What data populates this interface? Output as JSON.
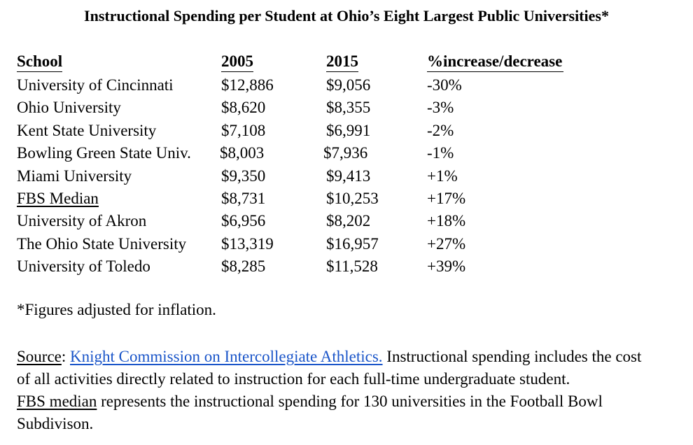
{
  "title": "Instructional Spending per Student at Ohio’s Eight Largest Public Universities*",
  "table": {
    "headers": {
      "school": "School",
      "y2005": "2005",
      "y2015": "2015",
      "change": "%increase/decrease"
    },
    "rows": [
      {
        "school": "University of Cincinnati",
        "y2005": "$12,886",
        "y2015": "$9,056",
        "change": "-30%"
      },
      {
        "school": "Ohio University",
        "y2005": "$8,620",
        "y2015": "$8,355",
        "change": "-3%"
      },
      {
        "school": "Kent State University",
        "y2005": "$7,108",
        "y2015": "$6,991",
        "change": "-2%"
      },
      {
        "school": "Bowling Green State Univ.",
        "y2005": "$8,003",
        "y2015": "$7,936",
        "change": "-1%"
      },
      {
        "school": "Miami University",
        "y2005": "$9,350",
        "y2015": "$9,413",
        "change": "+1%"
      },
      {
        "school": "FBS Median",
        "y2005": "$8,731",
        "y2015": "$10,253",
        "change": "+17%"
      },
      {
        "school": "University of Akron",
        "y2005": "$6,956",
        "y2015": "$8,202",
        "change": "+18%"
      },
      {
        "school": "The Ohio State University",
        "y2005": "$13,319",
        "y2015": "$16,957",
        "change": "+27%"
      },
      {
        "school": "University of Toledo",
        "y2005": "$8,285",
        "y2015": "$11,528",
        "change": "+39%"
      }
    ]
  },
  "note": "*Figures adjusted for inflation.",
  "source": {
    "label": "Source",
    "colon": ":",
    "link_text": "Knight Commission on Intercollegiate Athletics.",
    "line1_rest": "Instructional spending includes the cost",
    "line2": "of all activities directly related to instruction for each full-time undergraduate student.",
    "fbs_label": "FBS median",
    "line3_rest": "represents the instructional spending for 130 universities in the Football Bowl",
    "line4": "Subdivison."
  },
  "colors": {
    "link": "#1a55c9",
    "text": "#000000",
    "background": "#ffffff"
  }
}
